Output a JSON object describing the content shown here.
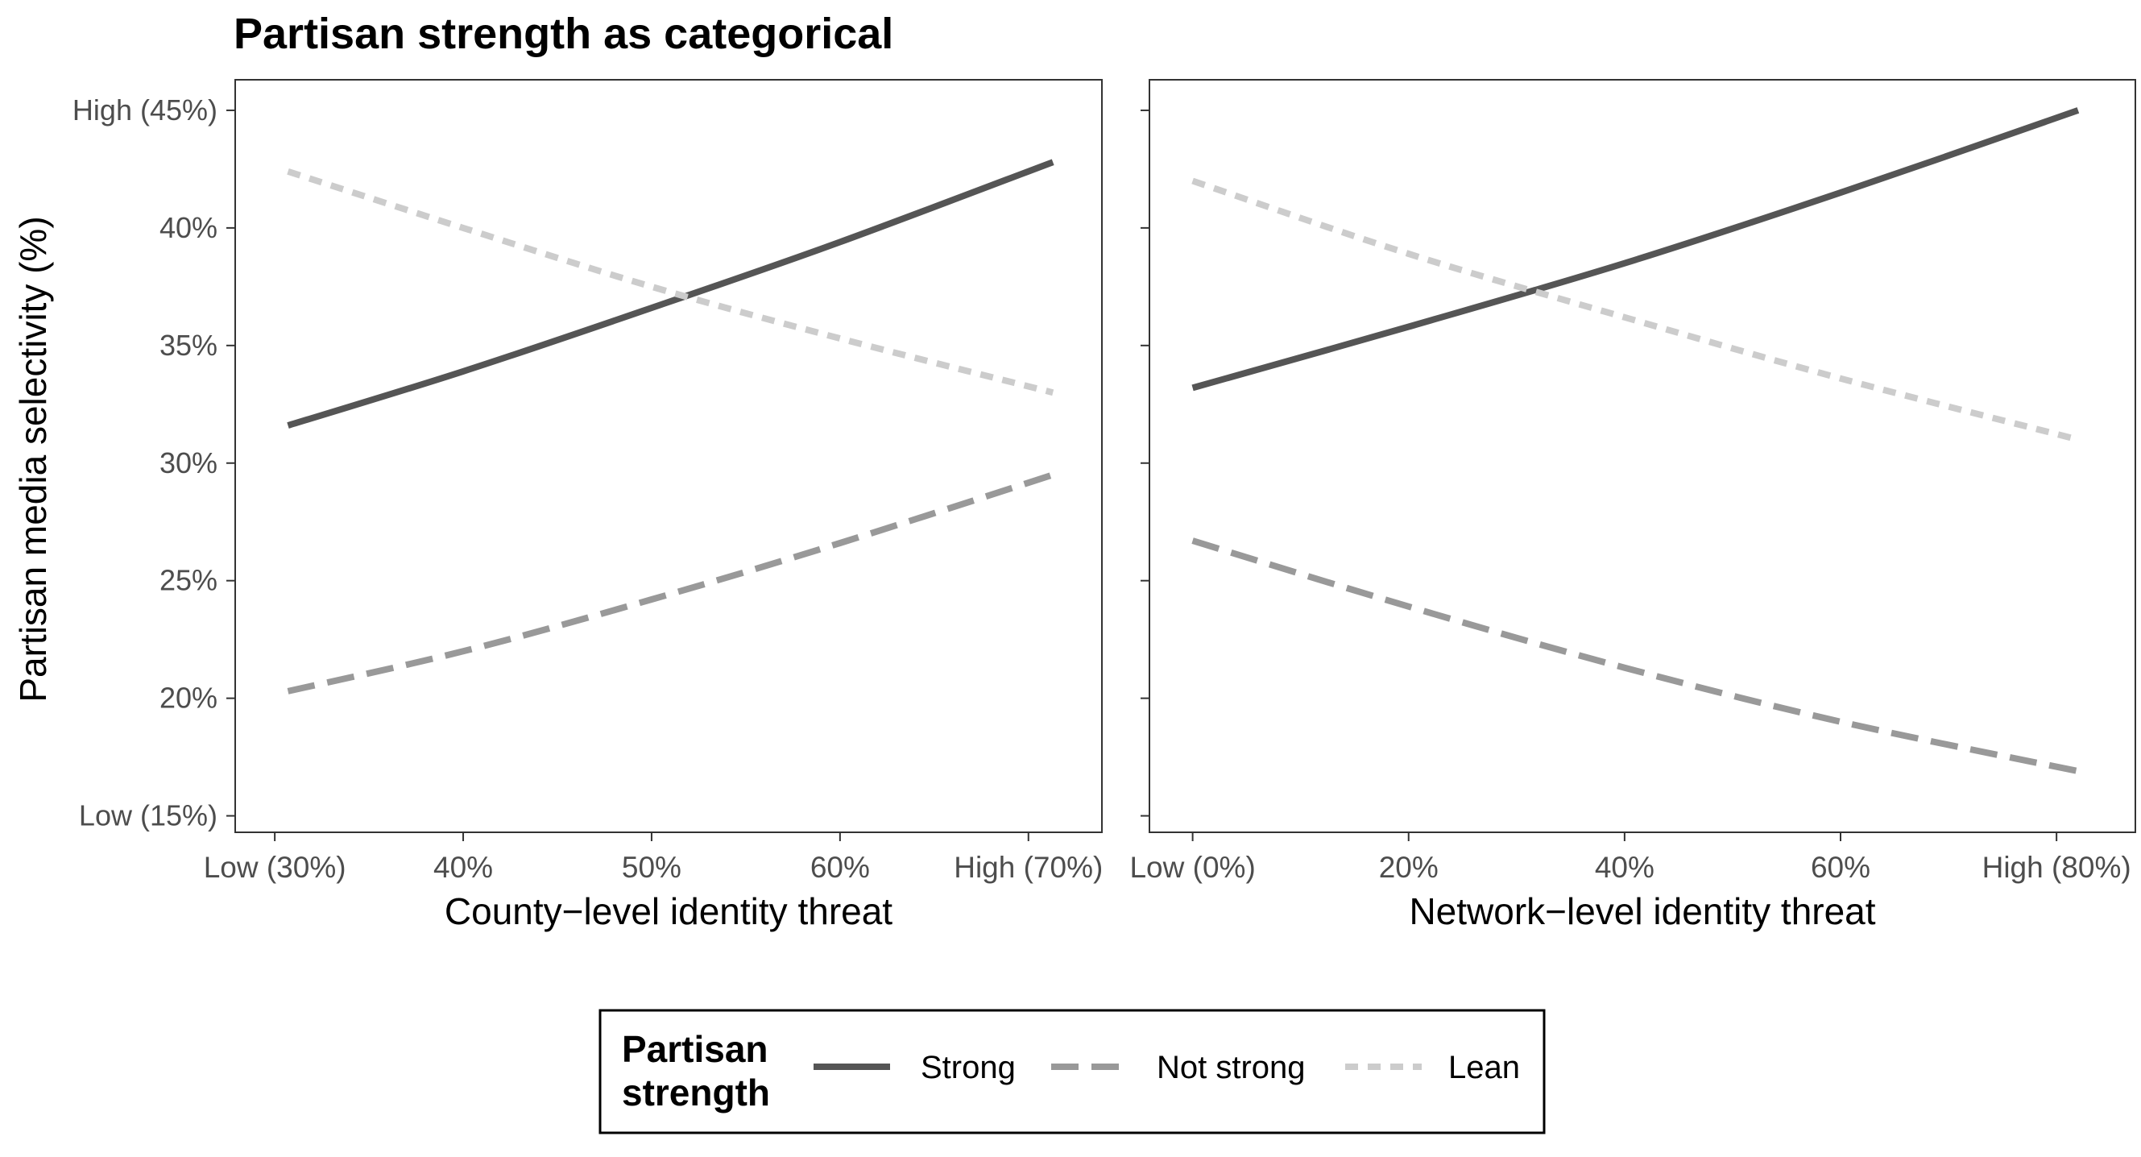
{
  "chart_data": {
    "type": "line",
    "title": "Partisan strength as categorical",
    "ylabel": "Partisan media selectivity (%)",
    "ylim": [
      14.3,
      46.3
    ],
    "y_ticks": [
      {
        "value": 45,
        "label": "High (45%)"
      },
      {
        "value": 40,
        "label": "40%"
      },
      {
        "value": 35,
        "label": "35%"
      },
      {
        "value": 30,
        "label": "30%"
      },
      {
        "value": 25,
        "label": "25%"
      },
      {
        "value": 20,
        "label": "20%"
      },
      {
        "value": 15,
        "label": "Low (15%)"
      }
    ],
    "grid": false,
    "legend": {
      "title_lines": [
        "Partisan",
        "strength"
      ],
      "placement": "bottom",
      "entries": [
        "Strong",
        "Not strong",
        "Lean"
      ]
    },
    "panels": [
      {
        "xlabel": "County−level identity threat",
        "xlim": [
          27.9,
          73.9
        ],
        "x_ticks": [
          {
            "value": 30,
            "label": "Low (30%)"
          },
          {
            "value": 40,
            "label": "40%"
          },
          {
            "value": 50,
            "label": "50%"
          },
          {
            "value": 60,
            "label": "60%"
          },
          {
            "value": 70,
            "label": "High (70%)"
          }
        ],
        "series": [
          {
            "name": "Strong",
            "style": "solid",
            "color": "#555555",
            "x": [
              30.7,
              40,
              50,
              60,
              71.3
            ],
            "y": [
              31.6,
              33.9,
              36.6,
              39.4,
              42.8
            ]
          },
          {
            "name": "Not strong",
            "style": "dashed",
            "color": "#999999",
            "x": [
              30.7,
              40,
              50,
              60,
              71.3
            ],
            "y": [
              20.3,
              22.0,
              24.2,
              26.6,
              29.5
            ]
          },
          {
            "name": "Lean",
            "style": "dotted",
            "color": "#cccccc",
            "x": [
              30.7,
              40,
              50,
              60,
              71.3
            ],
            "y": [
              42.4,
              40.0,
              37.5,
              35.3,
              33.0
            ]
          }
        ]
      },
      {
        "xlabel": "Network−level identity threat",
        "xlim": [
          -4.0,
          87.3
        ],
        "x_ticks": [
          {
            "value": 0,
            "label": "Low (0%)"
          },
          {
            "value": 20,
            "label": "20%"
          },
          {
            "value": 40,
            "label": "40%"
          },
          {
            "value": 60,
            "label": "60%"
          },
          {
            "value": 80,
            "label": "High (80%)"
          }
        ],
        "series": [
          {
            "name": "Strong",
            "style": "solid",
            "color": "#555555",
            "x": [
              0,
              20,
              40,
              60,
              82
            ],
            "y": [
              33.2,
              35.8,
              38.5,
              41.5,
              45.0
            ]
          },
          {
            "name": "Not strong",
            "style": "dashed",
            "color": "#999999",
            "x": [
              0,
              20,
              40,
              60,
              82
            ],
            "y": [
              26.7,
              23.9,
              21.3,
              19.0,
              16.9
            ]
          },
          {
            "name": "Lean",
            "style": "dotted",
            "color": "#cccccc",
            "x": [
              0,
              20,
              40,
              60,
              82
            ],
            "y": [
              42.0,
              38.9,
              36.2,
              33.6,
              31.0
            ]
          }
        ]
      }
    ]
  }
}
